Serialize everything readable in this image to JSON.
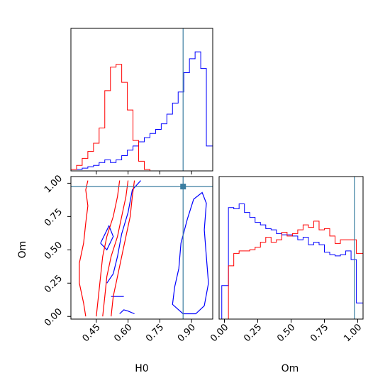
{
  "chart_data": {
    "type": "corner",
    "parameters": [
      "H0",
      "Om"
    ],
    "truths": {
      "H0": 0.86,
      "Om": 0.975
    },
    "truth_color": "#3b7ea1",
    "series": [
      {
        "color": "#ff0000"
      },
      {
        "color": "#0000ff"
      }
    ],
    "panels": [
      {
        "id": "H0-hist",
        "xlim": [
          0.33,
          1.0
        ],
        "ylim": [
          0,
          1
        ],
        "bin_edges": [
          0.33,
          0.3567,
          0.3833,
          0.41,
          0.4367,
          0.4633,
          0.49,
          0.5167,
          0.5433,
          0.57,
          0.5967,
          0.6233,
          0.65,
          0.6767,
          0.7033,
          0.73,
          0.7567,
          0.7833,
          0.81,
          0.8367,
          0.8633,
          0.89,
          0.9167,
          0.9433,
          0.97,
          1.0
        ],
        "hist_red": [
          0.01,
          0.04,
          0.09,
          0.14,
          0.2,
          0.31,
          0.58,
          0.75,
          0.77,
          0.64,
          0.44,
          0.22,
          0.07,
          0.01,
          0,
          0,
          0,
          0,
          0,
          0,
          0,
          0,
          0,
          0,
          0
        ],
        "hist_blue": [
          0.01,
          0.01,
          0.02,
          0.03,
          0.04,
          0.06,
          0.08,
          0.06,
          0.08,
          0.11,
          0.15,
          0.18,
          0.21,
          0.24,
          0.27,
          0.3,
          0.34,
          0.41,
          0.49,
          0.57,
          0.71,
          0.81,
          0.86,
          0.74,
          0.18
        ]
      },
      {
        "id": "Om-hist",
        "xlim": [
          -0.04,
          1.04
        ],
        "ylim": [
          0,
          1
        ],
        "xticks": [
          "0.00",
          "0.25",
          "0.50",
          "0.75",
          "1.00"
        ],
        "xtick_values": [
          0,
          0.25,
          0.5,
          0.75,
          1.0
        ],
        "xlabel": "Om",
        "bin_edges": [
          -0.02,
          0.03,
          0.07,
          0.11,
          0.15,
          0.19,
          0.23,
          0.27,
          0.31,
          0.35,
          0.39,
          0.43,
          0.47,
          0.51,
          0.55,
          0.59,
          0.63,
          0.67,
          0.71,
          0.75,
          0.79,
          0.83,
          0.87,
          0.91,
          0.95,
          0.99,
          1.04
        ],
        "hist_red": [
          0,
          0.43,
          0.53,
          0.55,
          0.55,
          0.56,
          0.58,
          0.62,
          0.66,
          0.62,
          0.64,
          0.7,
          0.67,
          0.69,
          0.72,
          0.76,
          0.74,
          0.79,
          0.72,
          0.73,
          0.67,
          0.61,
          0.64,
          0.64,
          0.64,
          0.53
        ],
        "hist_blue": [
          0.27,
          0.9,
          0.89,
          0.93,
          0.86,
          0.82,
          0.78,
          0.76,
          0.73,
          0.72,
          0.69,
          0.68,
          0.68,
          0.67,
          0.64,
          0.66,
          0.6,
          0.62,
          0.6,
          0.54,
          0.52,
          0.51,
          0.52,
          0.55,
          0.48,
          0.13
        ]
      },
      {
        "id": "H0-Om-contour",
        "xlim": [
          0.33,
          1.0
        ],
        "ylim": [
          -0.02,
          1.05
        ],
        "xticks": [
          "0.45",
          "0.60",
          "0.75",
          "0.90"
        ],
        "xtick_values": [
          0.45,
          0.6,
          0.75,
          0.9
        ],
        "yticks": [
          "0.00",
          "0.25",
          "0.50",
          "0.75",
          "1.00"
        ],
        "ytick_values": [
          0,
          0.25,
          0.5,
          0.75,
          1.0
        ],
        "xlabel": "H0",
        "ylabel": "Om",
        "contours_red": [
          [
            [
              0.4,
              0.0
            ],
            [
              0.39,
              0.1
            ],
            [
              0.37,
              0.25
            ],
            [
              0.37,
              0.4
            ],
            [
              0.39,
              0.55
            ],
            [
              0.4,
              0.7
            ],
            [
              0.41,
              0.83
            ],
            [
              0.4,
              0.95
            ],
            [
              0.41,
              1.02
            ]
          ],
          [
            [
              0.45,
              0.0
            ],
            [
              0.46,
              0.15
            ],
            [
              0.47,
              0.3
            ],
            [
              0.48,
              0.45
            ],
            [
              0.5,
              0.6
            ],
            [
              0.53,
              0.75
            ],
            [
              0.55,
              0.9
            ],
            [
              0.56,
              1.02
            ]
          ],
          [
            [
              0.48,
              0.0
            ],
            [
              0.49,
              0.15
            ],
            [
              0.5,
              0.3
            ],
            [
              0.52,
              0.45
            ],
            [
              0.55,
              0.6
            ],
            [
              0.57,
              0.75
            ],
            [
              0.59,
              0.9
            ],
            [
              0.6,
              1.02
            ]
          ],
          [
            [
              0.52,
              0.0
            ],
            [
              0.53,
              0.15
            ],
            [
              0.55,
              0.3
            ],
            [
              0.57,
              0.45
            ],
            [
              0.59,
              0.6
            ],
            [
              0.61,
              0.75
            ],
            [
              0.62,
              0.9
            ],
            [
              0.63,
              1.02
            ]
          ]
        ],
        "contours_blue": [
          [
            [
              0.56,
              0.02
            ],
            [
              0.58,
              0.05
            ],
            [
              0.6,
              0.04
            ],
            [
              0.63,
              0.02
            ]
          ],
          [
            [
              0.52,
              0.15
            ],
            [
              0.55,
              0.15
            ],
            [
              0.58,
              0.15
            ]
          ],
          [
            [
              0.5,
              0.25
            ],
            [
              0.53,
              0.32
            ],
            [
              0.55,
              0.45
            ],
            [
              0.57,
              0.62
            ],
            [
              0.6,
              0.78
            ],
            [
              0.62,
              0.95
            ],
            [
              0.66,
              1.02
            ]
          ],
          [
            [
              0.47,
              0.55
            ],
            [
              0.5,
              0.5
            ],
            [
              0.53,
              0.6
            ],
            [
              0.51,
              0.68
            ],
            [
              0.47,
              0.55
            ]
          ],
          [
            [
              0.86,
              0.02
            ],
            [
              0.81,
              0.09
            ],
            [
              0.82,
              0.22
            ],
            [
              0.84,
              0.36
            ],
            [
              0.85,
              0.55
            ],
            [
              0.88,
              0.73
            ],
            [
              0.91,
              0.88
            ],
            [
              0.95,
              0.93
            ],
            [
              0.97,
              0.85
            ],
            [
              0.96,
              0.65
            ],
            [
              0.97,
              0.45
            ],
            [
              0.98,
              0.25
            ],
            [
              0.96,
              0.08
            ],
            [
              0.92,
              0.02
            ],
            [
              0.86,
              0.02
            ]
          ]
        ]
      }
    ]
  }
}
